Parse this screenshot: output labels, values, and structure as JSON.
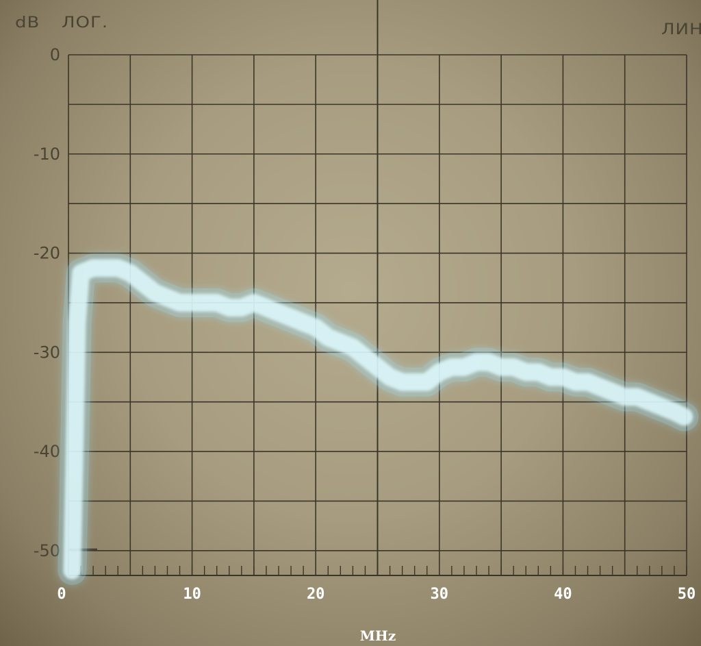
{
  "header": {
    "unit_label": "dB",
    "scale_log": "ЛОГ.",
    "scale_lin": "ЛИН."
  },
  "chart_data": {
    "type": "line",
    "title": "",
    "xlabel": "MHz",
    "ylabel": "dB",
    "xlim": [
      0,
      50
    ],
    "ylim": [
      -52.5,
      0
    ],
    "x_ticks": [
      0,
      10,
      20,
      30,
      40,
      50
    ],
    "y_ticks": [
      0,
      -10,
      -20,
      -30,
      -40,
      -50
    ],
    "y_tick_labels": [
      "0",
      "-10",
      "-20",
      "-30",
      "-40",
      "-50"
    ],
    "grid": true,
    "colors": {
      "trace": "#dffaff",
      "trace_glow": "#9fe6ff",
      "grid": "#3a3528"
    },
    "series": [
      {
        "x": [
          0.3,
          0.5,
          0.7,
          1,
          2,
          3,
          4,
          5,
          6,
          7,
          8,
          9,
          10,
          11,
          12,
          13,
          14,
          15,
          16,
          17,
          18,
          19,
          20,
          21,
          22,
          23,
          24,
          25,
          26,
          27,
          28,
          29,
          30,
          31,
          32,
          33,
          34,
          35,
          36,
          37,
          38,
          39,
          40,
          41,
          42,
          43,
          44,
          45,
          46,
          47,
          48,
          49,
          49.8
        ],
        "y": [
          -52,
          -40,
          -27,
          -22,
          -21.5,
          -21.5,
          -21.5,
          -22,
          -23,
          -24,
          -24.5,
          -25,
          -25,
          -25,
          -25,
          -25.5,
          -25.5,
          -25,
          -25.5,
          -26,
          -26.5,
          -27,
          -27.5,
          -28.5,
          -29,
          -29.5,
          -30.5,
          -31.5,
          -32.5,
          -33,
          -33,
          -33,
          -32,
          -31.5,
          -31.5,
          -31,
          -31,
          -31.5,
          -31.5,
          -32,
          -32,
          -32.5,
          -32.5,
          -33,
          -33,
          -33.5,
          -34,
          -34.5,
          -34.5,
          -35,
          -35.5,
          -36,
          -36.5
        ]
      }
    ]
  }
}
